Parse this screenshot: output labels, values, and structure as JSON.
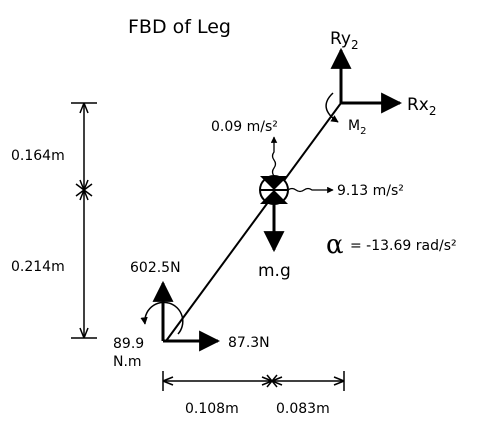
{
  "title": "FBD of Leg",
  "labels": {
    "ry2_main": "Ry",
    "ry2_sub": "2",
    "rx2_main": "Rx",
    "rx2_sub": "2",
    "m2_main": "M",
    "m2_sub": "2",
    "accel_top": "0.09 m/s²",
    "accel_right": "9.13 m/s²",
    "weight": "m.g",
    "alpha_symbol": "α",
    "alpha_value": "= -13.69 rad/s²",
    "force_vertical": "602.5N",
    "force_horizontal": "87.3N",
    "moment_value": "89.9",
    "moment_unit": "N.m"
  },
  "dimensions": {
    "vertical_upper": "0.164m",
    "vertical_lower": "0.214m",
    "horizontal_left": "0.108m",
    "horizontal_right": "0.083m"
  }
}
